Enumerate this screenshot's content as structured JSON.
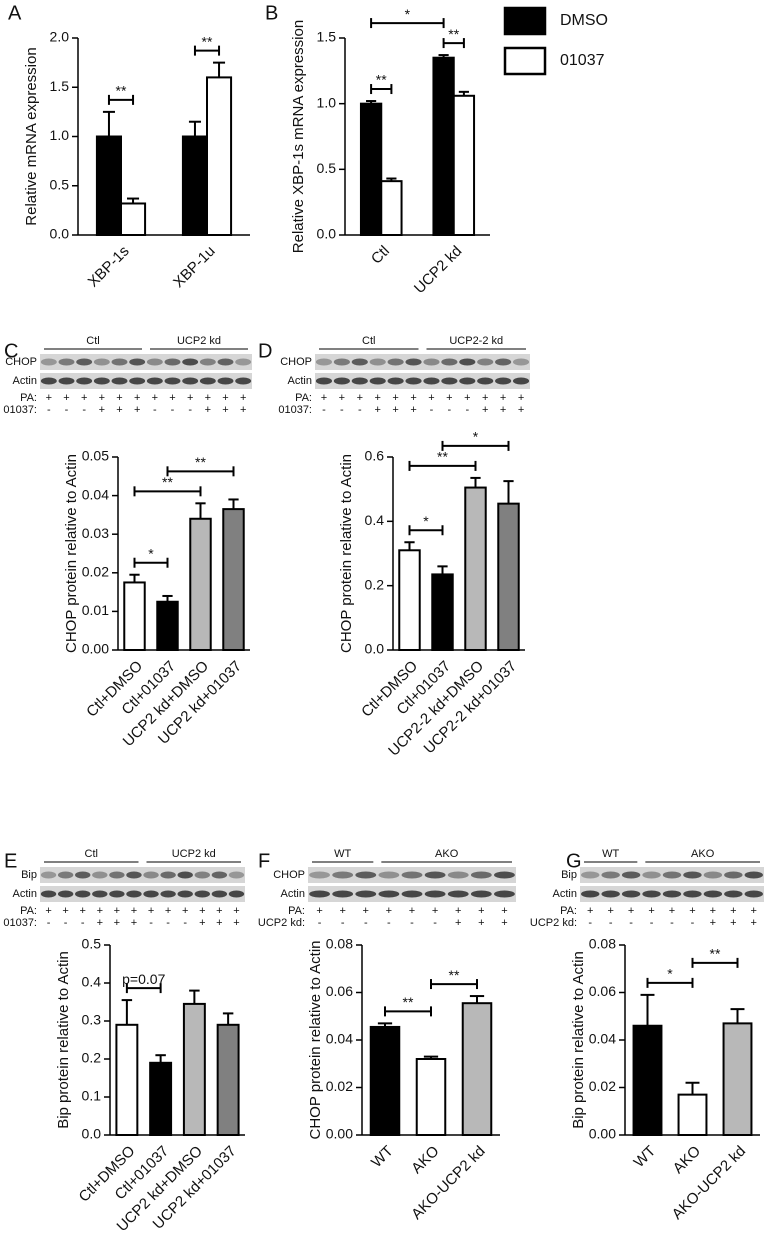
{
  "chart_data": [
    {
      "type": "bar",
      "panel": "A",
      "y_label": "Relative mRNA expression",
      "categories": [
        "XBP-1s",
        "XBP-1u"
      ],
      "series": [
        {
          "name": "DMSO",
          "color": "#000000",
          "values": [
            1.0,
            1.0
          ],
          "errors": [
            0.25,
            0.15
          ]
        },
        {
          "name": "01037",
          "color": "#ffffff",
          "values": [
            0.32,
            1.6
          ],
          "errors": [
            0.05,
            0.15
          ]
        }
      ],
      "ylim": [
        0,
        2.0
      ],
      "yticks": [
        {
          "value": 0,
          "label": "0.0"
        },
        0.5,
        {
          "value": 1,
          "label": "1.0"
        },
        1.5,
        {
          "value": 2,
          "label": "2.0"
        }
      ],
      "annotations": [
        {
          "text": "**",
          "bars": [
            [
              0,
              0
            ],
            [
              1,
              0
            ]
          ]
        },
        {
          "text": "**",
          "bars": [
            [
              0,
              1
            ],
            [
              1,
              1
            ]
          ]
        }
      ]
    },
    {
      "type": "bar",
      "panel": "B",
      "y_label": "Relative XBP-1s mRNA  expression",
      "categories": [
        "Ctl",
        "UCP2 kd"
      ],
      "series": [
        {
          "name": "DMSO",
          "color": "#000000",
          "values": [
            1.0,
            1.35
          ],
          "errors": [
            0.02,
            0.02
          ]
        },
        {
          "name": "01037",
          "color": "#ffffff",
          "values": [
            0.41,
            1.06
          ],
          "errors": [
            0.02,
            0.03
          ]
        }
      ],
      "ylim": [
        0,
        1.5
      ],
      "yticks": [
        {
          "value": 0,
          "label": "0.0"
        },
        0.5,
        {
          "value": 1,
          "label": "1.0"
        },
        1.5
      ],
      "legend": "top-right",
      "annotations": [
        {
          "text": "**",
          "bars": [
            [
              0,
              0
            ],
            [
              1,
              0
            ]
          ]
        },
        {
          "text": "**",
          "bars": [
            [
              0,
              1
            ],
            [
              1,
              1
            ]
          ]
        },
        {
          "text": "*",
          "bars": [
            [
              0,
              0
            ],
            [
              0,
              1
            ]
          ]
        }
      ]
    },
    {
      "type": "bar",
      "panel": "C",
      "y_label": "CHOP protein relative to Actin",
      "blot": {
        "groups": [
          "Ctl",
          "UCP2 kd"
        ],
        "bands": [
          "CHOP",
          "Actin"
        ],
        "rows": [
          {
            "label": "PA:",
            "signs": [
              "+",
              "+",
              "+",
              "+",
              "+",
              "+",
              "+",
              "+",
              "+",
              "+",
              "+",
              "+"
            ]
          },
          {
            "label": "01037:",
            "signs": [
              "-",
              "-",
              "-",
              "+",
              "+",
              "+",
              "-",
              "-",
              "-",
              "+",
              "+",
              "+"
            ]
          }
        ]
      },
      "categories": [
        "Ctl+DMSO",
        "Ctl+01037",
        "UCP2 kd+DMSO",
        "UCP2 kd+01037"
      ],
      "values": [
        0.0175,
        0.0125,
        0.034,
        0.0365
      ],
      "errors": [
        0.002,
        0.0015,
        0.004,
        0.0025
      ],
      "colors": [
        "#ffffff",
        "#000000",
        "#b8b8b8",
        "#808080"
      ],
      "ylim": [
        0,
        0.05
      ],
      "yticks": [
        {
          "value": 0,
          "label": "0.00"
        },
        0.01,
        0.02,
        0.03,
        0.04,
        0.05
      ],
      "annotations": [
        {
          "text": "*",
          "bars": [
            0,
            1
          ]
        },
        {
          "text": "**",
          "bars": [
            0,
            2
          ]
        },
        {
          "text": "**",
          "bars": [
            1,
            3
          ]
        }
      ]
    },
    {
      "type": "bar",
      "panel": "D",
      "y_label": "CHOP protein relative to Actin",
      "blot": {
        "groups": [
          "Ctl",
          "UCP2-2 kd"
        ],
        "bands": [
          "CHOP",
          "Actin"
        ],
        "rows": [
          {
            "label": "PA:",
            "signs": [
              "+",
              "+",
              "+",
              "+",
              "+",
              "+",
              "+",
              "+",
              "+",
              "+",
              "+",
              "+"
            ]
          },
          {
            "label": "01037:",
            "signs": [
              "-",
              "-",
              "-",
              "+",
              "+",
              "+",
              "-",
              "-",
              "-",
              "+",
              "+",
              "+"
            ]
          }
        ]
      },
      "categories": [
        "Ctl+DMSO",
        "Ctl+01037",
        "UCP2-2 kd+DMSO",
        "UCP2-2 kd+01037"
      ],
      "values": [
        0.31,
        0.235,
        0.505,
        0.455
      ],
      "errors": [
        0.025,
        0.025,
        0.03,
        0.07
      ],
      "colors": [
        "#ffffff",
        "#000000",
        "#b8b8b8",
        "#808080"
      ],
      "ylim": [
        0,
        0.6
      ],
      "yticks": [
        {
          "value": 0,
          "label": "0.0"
        },
        0.2,
        0.4,
        0.6
      ],
      "annotations": [
        {
          "text": "*",
          "bars": [
            0,
            1
          ]
        },
        {
          "text": "**",
          "bars": [
            0,
            2
          ]
        },
        {
          "text": "*",
          "bars": [
            1,
            3
          ]
        }
      ]
    },
    {
      "type": "bar",
      "panel": "E",
      "y_label": "Bip protein relative to Actin",
      "blot": {
        "groups": [
          "Ctl",
          "UCP2 kd"
        ],
        "bands": [
          "Bip",
          "Actin"
        ],
        "rows": [
          {
            "label": "PA:",
            "signs": [
              "+",
              "+",
              "+",
              "+",
              "+",
              "+",
              "+",
              "+",
              "+",
              "+",
              "+",
              "+"
            ]
          },
          {
            "label": "01037:",
            "signs": [
              "-",
              "-",
              "-",
              "+",
              "+",
              "+",
              "-",
              "-",
              "-",
              "+",
              "+",
              "+"
            ]
          }
        ]
      },
      "categories": [
        "Ctl+DMSO",
        "Ctl+01037",
        "UCP2 kd+DMSO",
        "UCP2 kd+01037"
      ],
      "values": [
        0.29,
        0.19,
        0.345,
        0.29
      ],
      "errors": [
        0.065,
        0.02,
        0.035,
        0.03
      ],
      "colors": [
        "#ffffff",
        "#000000",
        "#b8b8b8",
        "#808080"
      ],
      "ylim": [
        0,
        0.5
      ],
      "yticks": [
        {
          "value": 0,
          "label": "0.0"
        },
        0.1,
        0.2,
        0.3,
        0.4,
        0.5
      ],
      "annotations": [
        {
          "text": "p=0.07",
          "bars": [
            0,
            1
          ]
        }
      ]
    },
    {
      "type": "bar",
      "panel": "F",
      "y_label": "CHOP protein relative to Actin",
      "blot": {
        "groups": [
          "WT",
          "AKO"
        ],
        "bands": [
          "CHOP",
          "Actin"
        ],
        "rows": [
          {
            "label": "PA:",
            "signs": [
              "+",
              "+",
              "+",
              "+",
              "+",
              "+",
              "+",
              "+",
              "+"
            ]
          },
          {
            "label": "UCP2 kd:",
            "signs": [
              "-",
              "-",
              "-",
              "-",
              "-",
              "-",
              "+",
              "+",
              "+"
            ]
          }
        ]
      },
      "categories": [
        "WT",
        "AKO",
        "AKO-UCP2 kd"
      ],
      "values": [
        0.0455,
        0.032,
        0.0555
      ],
      "errors": [
        0.0015,
        0.001,
        0.003
      ],
      "colors": [
        "#000000",
        "#ffffff",
        "#b8b8b8"
      ],
      "ylim": [
        0,
        0.08
      ],
      "yticks": [
        {
          "value": 0,
          "label": "0.00"
        },
        0.02,
        0.04,
        0.06,
        0.08
      ],
      "annotations": [
        {
          "text": "**",
          "bars": [
            0,
            1
          ]
        },
        {
          "text": "**",
          "bars": [
            1,
            2
          ]
        }
      ]
    },
    {
      "type": "bar",
      "panel": "G",
      "y_label": "Bip protein relative to Actin",
      "blot": {
        "groups": [
          "WT",
          "AKO"
        ],
        "bands": [
          "Bip",
          "Actin"
        ],
        "rows": [
          {
            "label": "PA:",
            "signs": [
              "+",
              "+",
              "+",
              "+",
              "+",
              "+",
              "+",
              "+",
              "+"
            ]
          },
          {
            "label": "UCP2 kd:",
            "signs": [
              "-",
              "-",
              "-",
              "-",
              "-",
              "-",
              "+",
              "+",
              "+"
            ]
          }
        ]
      },
      "categories": [
        "WT",
        "AKO",
        "AKO-UCP2 kd"
      ],
      "values": [
        0.046,
        0.017,
        0.047
      ],
      "errors": [
        0.013,
        0.005,
        0.006
      ],
      "colors": [
        "#000000",
        "#ffffff",
        "#b8b8b8"
      ],
      "ylim": [
        0,
        0.08
      ],
      "yticks": [
        {
          "value": 0,
          "label": "0.00"
        },
        0.02,
        0.04,
        0.06,
        0.08
      ],
      "annotations": [
        {
          "text": "*",
          "bars": [
            0,
            1
          ]
        },
        {
          "text": "**",
          "bars": [
            1,
            2
          ]
        }
      ]
    }
  ]
}
